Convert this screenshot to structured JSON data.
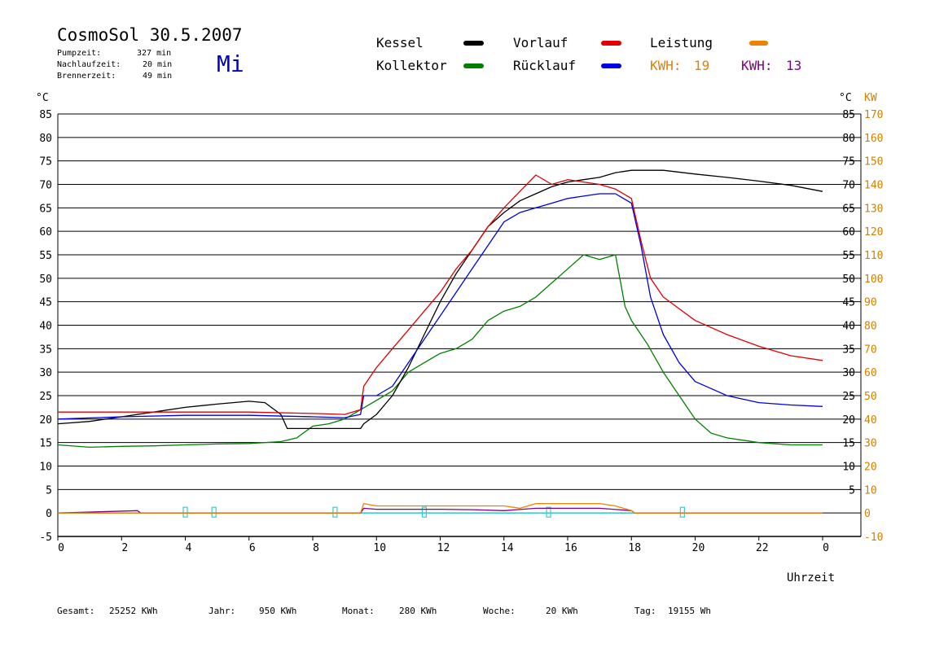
{
  "header": {
    "title": "CosmoSol 30.5.2007",
    "weekday": "Mi",
    "info": [
      {
        "label": "Pumpzeit:",
        "value": "327 min"
      },
      {
        "label": "Nachlaufzeit:",
        "value": "20 min"
      },
      {
        "label": "Brennerzeit:",
        "value": "49 min"
      }
    ]
  },
  "legend": {
    "items": [
      {
        "label": "Kessel",
        "color": "#000000"
      },
      {
        "label": "Vorlauf",
        "color": "#e00000"
      },
      {
        "label": "Leistung",
        "color": "#f08000"
      },
      {
        "label": "Kollektor",
        "color": "#008000"
      },
      {
        "label": "Rücklauf",
        "color": "#0000e0"
      }
    ],
    "kwh": [
      {
        "label": "KWH:",
        "value": "19",
        "color": "#e08000"
      },
      {
        "label": "KWH:",
        "value": "13",
        "color": "#800080"
      }
    ]
  },
  "axes": {
    "left_unit": "°C",
    "right_unit_temp": "°C",
    "right_unit_power": "KW",
    "xlabel": "Uhrzeit"
  },
  "footer": {
    "items": [
      {
        "label": "Gesamt:",
        "value": "25252 KWh"
      },
      {
        "label": "Jahr:",
        "value": "950 KWh"
      },
      {
        "label": "Monat:",
        "value": "280 KWh"
      },
      {
        "label": "Woche:",
        "value": "20 KWh"
      },
      {
        "label": "Tag:",
        "value": "19155 Wh"
      }
    ]
  },
  "chart_data": {
    "type": "line",
    "x_unit": "h",
    "xlim": [
      0,
      24
    ],
    "ylim": [
      -5,
      85
    ],
    "y2lim": [
      -10,
      170
    ],
    "grid": true,
    "x_ticks": [
      "0",
      "2",
      "4",
      "6",
      "8",
      "10",
      "12",
      "14",
      "16",
      "18",
      "20",
      "22",
      "0"
    ],
    "y_ticks_left": [
      "-5",
      "0",
      "5",
      "10",
      "15",
      "20",
      "25",
      "30",
      "35",
      "40",
      "45",
      "50",
      "55",
      "60",
      "65",
      "70",
      "75",
      "80",
      "85"
    ],
    "y_ticks_right_temp": [
      "5",
      "10",
      "15",
      "20",
      "25",
      "30",
      "35",
      "40",
      "45",
      "50",
      "55",
      "60",
      "65",
      "70",
      "75",
      "80",
      "85"
    ],
    "y_ticks_right_power": [
      "-10",
      "0",
      "10",
      "20",
      "30",
      "40",
      "50",
      "60",
      "70",
      "80",
      "90",
      "100",
      "110",
      "120",
      "130",
      "140",
      "150",
      "160",
      "170"
    ],
    "series": [
      {
        "name": "Kessel",
        "color": "#000000",
        "x": [
          0,
          1,
          2,
          3,
          4,
          5,
          6,
          6.5,
          7,
          7.2,
          8,
          9,
          9.5,
          9.6,
          10,
          10.5,
          11,
          11.5,
          12,
          12.5,
          13,
          13.5,
          14,
          14.5,
          15,
          15.5,
          16,
          16.5,
          17,
          17.5,
          18,
          18.5,
          19,
          20,
          21,
          22,
          23,
          24
        ],
        "y": [
          19,
          19.5,
          20.5,
          21.5,
          22.5,
          23.2,
          23.8,
          23.5,
          21,
          18,
          18,
          18,
          18,
          19,
          21,
          25,
          31,
          38,
          45,
          51,
          56,
          61,
          64,
          66.5,
          68,
          69.5,
          70.5,
          71,
          71.5,
          72.5,
          73,
          73,
          73,
          72.2,
          71.5,
          70.7,
          69.8,
          68.5
        ]
      },
      {
        "name": "Vorlauf",
        "color": "#e00000",
        "x": [
          0,
          2,
          4,
          6,
          8,
          9,
          9.5,
          9.6,
          10,
          10.5,
          11,
          11.5,
          12,
          12.5,
          13,
          13.5,
          14,
          14.5,
          15,
          15.5,
          16,
          16.5,
          17,
          17.5,
          18,
          18.3,
          18.6,
          19,
          20,
          21,
          22,
          23,
          24
        ],
        "y": [
          21.5,
          21.5,
          21.5,
          21.5,
          21.2,
          21,
          22,
          27,
          31,
          35,
          39,
          43,
          47,
          52,
          56,
          61,
          65,
          68.5,
          72,
          70,
          71,
          70.5,
          70,
          69,
          67,
          58,
          50,
          46,
          41,
          38,
          35.5,
          33.5,
          32.5
        ]
      },
      {
        "name": "Rücklauf",
        "color": "#0000e0",
        "x": [
          0,
          2,
          4,
          6,
          8,
          9,
          9.5,
          9.6,
          10,
          10.5,
          11,
          11.5,
          12,
          12.5,
          13,
          13.5,
          14,
          14.5,
          15,
          15.5,
          16,
          16.5,
          17,
          17.5,
          18,
          18.3,
          18.6,
          19,
          19.5,
          20,
          21,
          22,
          23,
          24
        ],
        "y": [
          20,
          20.5,
          20.8,
          20.8,
          20.5,
          20.3,
          21,
          25,
          25,
          27,
          32,
          37,
          42,
          47,
          52,
          57,
          62,
          64,
          65,
          66,
          67,
          67.5,
          68,
          68,
          66,
          57,
          46,
          38,
          32,
          28,
          25,
          23.5,
          23,
          22.7
        ]
      },
      {
        "name": "Kollektor",
        "color": "#008000",
        "x": [
          0,
          1,
          2,
          3,
          4,
          5,
          6,
          7,
          7.5,
          8,
          8.5,
          9,
          9.5,
          10,
          10.5,
          11,
          11.5,
          12,
          12.5,
          13,
          13.5,
          14,
          14.5,
          15,
          15.5,
          16,
          16.5,
          17,
          17.5,
          17.8,
          18,
          18.5,
          19,
          19.5,
          20,
          20.5,
          21,
          22,
          23,
          24
        ],
        "y": [
          14.5,
          14,
          14.2,
          14.3,
          14.5,
          14.7,
          14.8,
          15.2,
          16,
          18.5,
          19,
          20,
          22,
          24,
          26,
          30,
          32,
          34,
          35,
          37,
          41,
          43,
          44,
          46,
          49,
          52,
          55,
          54,
          55,
          44,
          41,
          36,
          30,
          25,
          20,
          17,
          16,
          15,
          14.5,
          14.5
        ]
      },
      {
        "name": "Leistung",
        "color": "#f08000",
        "x": [
          0,
          9.5,
          9.6,
          10,
          11,
          12,
          13,
          14,
          14.5,
          15,
          16,
          17,
          17.5,
          18,
          18.1,
          24
        ],
        "y": [
          0,
          0,
          2,
          1.5,
          1.5,
          1.5,
          1.5,
          1.5,
          1,
          2,
          2,
          2,
          1.5,
          0.5,
          0,
          0
        ]
      },
      {
        "name": "Leistung",
        "color": "#800080",
        "x": [
          0,
          2.5,
          2.6,
          9.5,
          9.6,
          10,
          11,
          12,
          13,
          14,
          15,
          16,
          17,
          18,
          18.1,
          24
        ],
        "y": [
          0,
          0.5,
          0,
          0,
          1,
          0.8,
          0.8,
          0.8,
          0.7,
          0.5,
          1,
          1,
          1,
          0.5,
          0,
          0
        ]
      }
    ],
    "burner_markers": [
      4,
      4.9,
      8.7,
      11.5,
      15.4,
      19.6
    ]
  }
}
